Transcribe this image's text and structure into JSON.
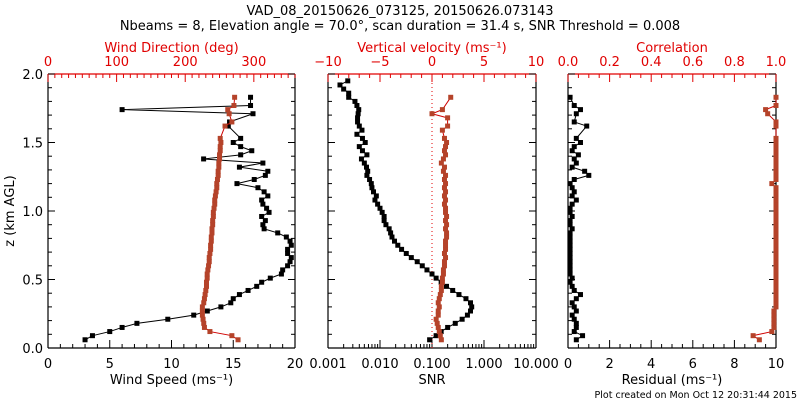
{
  "title_line1": "VAD_08_20150626_073125, 20150626.073143",
  "title_line2": "Nbeams = 8, Elevation angle = 70.0°, scan duration = 31.4 s, SNR Threshold = 0.008",
  "footer": "Plot created on Mon Oct 12 20:31:44 2015",
  "colors": {
    "black_series": "#000000",
    "red_series": "#b5432a",
    "axis_red": "#e00000",
    "zero_line": "#e00000"
  },
  "chart_data": [
    {
      "type": "line",
      "panel": "wind",
      "ylabel": "z (km AGL)",
      "ylim": [
        0,
        2
      ],
      "yticks": [
        "0.0",
        "0.5",
        "1.0",
        "1.5",
        "2.0"
      ],
      "bottom_axis": {
        "label": "Wind Speed (ms⁻¹)",
        "xlim": [
          0,
          20
        ],
        "ticks": [
          "0",
          "5",
          "10",
          "15",
          "20"
        ]
      },
      "top_axis": {
        "label": "Wind Direction (deg)",
        "xlim": [
          0,
          360
        ],
        "ticks": [
          "0",
          "100",
          "200",
          "300"
        ]
      },
      "series": [
        {
          "name": "Wind Speed",
          "axis": "bottom",
          "color": "black",
          "z": [
            0.06,
            0.09,
            0.12,
            0.15,
            0.18,
            0.21,
            0.24,
            0.27,
            0.3,
            0.33,
            0.36,
            0.39,
            0.42,
            0.45,
            0.48,
            0.51,
            0.54,
            0.57,
            0.6,
            0.63,
            0.66,
            0.69,
            0.72,
            0.75,
            0.78,
            0.81,
            0.84,
            0.87,
            0.9,
            0.93,
            0.96,
            0.99,
            1.02,
            1.05,
            1.08,
            1.11,
            1.14,
            1.17,
            1.2,
            1.23,
            1.26,
            1.29,
            1.32,
            1.35,
            1.38,
            1.41,
            1.44,
            1.47,
            1.5,
            1.53,
            1.62,
            1.65,
            1.71,
            1.74,
            1.77,
            1.83
          ],
          "values": [
            3.0,
            3.6,
            5.0,
            6.0,
            7.2,
            9.7,
            11.8,
            12.9,
            14.0,
            14.8,
            15.0,
            15.5,
            16.2,
            16.9,
            17.3,
            18.0,
            18.9,
            19.0,
            19.4,
            19.6,
            19.7,
            19.4,
            19.4,
            19.7,
            19.6,
            19.3,
            18.6,
            17.5,
            17.4,
            17.6,
            17.3,
            17.9,
            17.7,
            17.4,
            17.3,
            17.8,
            17.5,
            17.0,
            15.3,
            16.7,
            17.6,
            17.8,
            15.5,
            17.4,
            12.6,
            15.6,
            16.5,
            15.6,
            15.0,
            15.6,
            14.6,
            14.7,
            16.6,
            6.0,
            16.4,
            16.4
          ]
        },
        {
          "name": "Wind Direction",
          "axis": "top",
          "color": "red",
          "z": [
            0.06,
            0.09,
            0.12,
            0.15,
            0.18,
            0.21,
            0.24,
            0.27,
            0.3,
            0.33,
            0.36,
            0.39,
            0.42,
            0.45,
            0.48,
            0.51,
            0.54,
            0.57,
            0.6,
            0.63,
            0.66,
            0.69,
            0.72,
            0.75,
            0.78,
            0.81,
            0.84,
            0.87,
            0.9,
            0.93,
            0.96,
            0.99,
            1.02,
            1.05,
            1.08,
            1.11,
            1.14,
            1.17,
            1.2,
            1.23,
            1.26,
            1.29,
            1.32,
            1.35,
            1.38,
            1.41,
            1.44,
            1.47,
            1.5,
            1.53,
            1.62,
            1.65,
            1.71,
            1.74,
            1.77,
            1.83
          ],
          "values": [
            277,
            268,
            236,
            228,
            227,
            226,
            225,
            225,
            225,
            227,
            228,
            229,
            230,
            231,
            231,
            232,
            232,
            233,
            234,
            235,
            235,
            236,
            237,
            237,
            238,
            238,
            239,
            239,
            240,
            240,
            241,
            241,
            242,
            243,
            243,
            244,
            245,
            246,
            246,
            247,
            248,
            248,
            249,
            249,
            250,
            250,
            251,
            251,
            252,
            251,
            258,
            268,
            264,
            262,
            271,
            272
          ]
        }
      ]
    },
    {
      "type": "line",
      "panel": "snr",
      "ylim": [
        0,
        2
      ],
      "bottom_axis": {
        "label": "SNR",
        "scale": "log",
        "xlim": [
          0.001,
          10
        ],
        "ticks": [
          "0.001",
          "0.010",
          "0.100",
          "1.000",
          "10.000"
        ]
      },
      "top_axis": {
        "label": "Vertical velocity (ms⁻¹)",
        "xlim": [
          -10,
          10
        ],
        "ticks": [
          "−10",
          "−5",
          "0",
          "5",
          "10"
        ]
      },
      "series": [
        {
          "name": "SNR",
          "axis": "bottom",
          "color": "black",
          "z": [
            0.06,
            0.09,
            0.12,
            0.15,
            0.18,
            0.21,
            0.24,
            0.27,
            0.3,
            0.33,
            0.36,
            0.39,
            0.42,
            0.45,
            0.48,
            0.51,
            0.54,
            0.57,
            0.6,
            0.63,
            0.66,
            0.69,
            0.72,
            0.75,
            0.78,
            0.81,
            0.84,
            0.87,
            0.9,
            0.93,
            0.96,
            0.99,
            1.02,
            1.05,
            1.08,
            1.11,
            1.14,
            1.17,
            1.2,
            1.23,
            1.26,
            1.29,
            1.32,
            1.35,
            1.38,
            1.41,
            1.44,
            1.47,
            1.5,
            1.53,
            1.56,
            1.59,
            1.62,
            1.65,
            1.68,
            1.71,
            1.74,
            1.77,
            1.8,
            1.83,
            1.86,
            1.89,
            1.92,
            1.95
          ],
          "values": [
            0.09,
            0.12,
            0.15,
            0.2,
            0.28,
            0.38,
            0.48,
            0.55,
            0.58,
            0.55,
            0.45,
            0.33,
            0.25,
            0.19,
            0.15,
            0.12,
            0.1,
            0.08,
            0.065,
            0.052,
            0.04,
            0.032,
            0.026,
            0.022,
            0.019,
            0.017,
            0.016,
            0.015,
            0.013,
            0.012,
            0.012,
            0.011,
            0.01,
            0.009,
            0.008,
            0.0085,
            0.0075,
            0.007,
            0.0068,
            0.0063,
            0.0056,
            0.0058,
            0.0055,
            0.005,
            0.0044,
            0.0056,
            0.0046,
            0.004,
            0.0052,
            0.0046,
            0.0036,
            0.0045,
            0.004,
            0.0037,
            0.0037,
            0.0038,
            0.0039,
            0.0036,
            0.0033,
            0.0025,
            0.0025,
            0.002,
            0.0017,
            0.0024
          ]
        },
        {
          "name": "Vertical velocity",
          "axis": "top",
          "color": "red",
          "z": [
            0.06,
            0.09,
            0.12,
            0.15,
            0.18,
            0.21,
            0.24,
            0.27,
            0.3,
            0.33,
            0.36,
            0.39,
            0.42,
            0.45,
            0.48,
            0.51,
            0.54,
            0.57,
            0.6,
            0.63,
            0.66,
            0.69,
            0.72,
            0.75,
            0.78,
            0.81,
            0.84,
            0.87,
            0.9,
            0.93,
            0.96,
            0.99,
            1.02,
            1.05,
            1.08,
            1.11,
            1.14,
            1.17,
            1.2,
            1.23,
            1.26,
            1.29,
            1.32,
            1.35,
            1.38,
            1.41,
            1.44,
            1.47,
            1.5,
            1.53,
            1.59,
            1.62,
            1.68,
            1.71,
            1.74,
            1.83
          ],
          "values": [
            0.9,
            0.8,
            0.7,
            0.6,
            0.5,
            0.4,
            0.6,
            0.6,
            0.7,
            0.6,
            0.7,
            0.8,
            0.9,
            0.9,
            1.0,
            1.0,
            1.1,
            1.1,
            1.2,
            1.2,
            1.3,
            1.2,
            1.3,
            1.3,
            1.3,
            1.4,
            1.4,
            1.3,
            1.4,
            1.3,
            1.4,
            1.3,
            1.3,
            1.2,
            1.3,
            1.2,
            1.3,
            1.2,
            1.3,
            1.2,
            1.3,
            1.1,
            1.2,
            0.9,
            1.1,
            1.3,
            1.2,
            1.3,
            1.4,
            1.2,
            1.0,
            1.5,
            1.5,
            0.0,
            1.0,
            1.8
          ]
        }
      ],
      "reference_line": {
        "top_axis_value": 0,
        "style": "dotted"
      }
    },
    {
      "type": "line",
      "panel": "residual",
      "ylim": [
        0,
        2
      ],
      "bottom_axis": {
        "label": "Residual (ms⁻¹)",
        "xlim": [
          0,
          10
        ],
        "ticks": [
          "0",
          "2",
          "4",
          "6",
          "8",
          "10"
        ]
      },
      "top_axis": {
        "label": "Correlation",
        "xlim": [
          0,
          1
        ],
        "ticks": [
          "0.0",
          "0.2",
          "0.4",
          "0.6",
          "0.8",
          "1.0"
        ]
      },
      "series": [
        {
          "name": "Residual",
          "axis": "bottom",
          "color": "black",
          "z": [
            0.06,
            0.09,
            0.12,
            0.15,
            0.18,
            0.21,
            0.24,
            0.27,
            0.3,
            0.33,
            0.36,
            0.39,
            0.42,
            0.45,
            0.48,
            0.51,
            0.54,
            0.57,
            0.6,
            0.63,
            0.66,
            0.69,
            0.72,
            0.75,
            0.78,
            0.81,
            0.84,
            0.87,
            0.9,
            0.93,
            0.96,
            0.99,
            1.02,
            1.05,
            1.08,
            1.11,
            1.14,
            1.17,
            1.2,
            1.23,
            1.26,
            1.29,
            1.32,
            1.35,
            1.38,
            1.41,
            1.44,
            1.47,
            1.5,
            1.53,
            1.62,
            1.65,
            1.71,
            1.74,
            1.77,
            1.83
          ],
          "values": [
            0.4,
            0.7,
            0.3,
            0.4,
            0.4,
            0.3,
            0.2,
            0.4,
            0.3,
            0.2,
            0.4,
            0.6,
            0.3,
            0.2,
            0.1,
            0.2,
            0.1,
            0.1,
            0.1,
            0.1,
            0.1,
            0.1,
            0.1,
            0.1,
            0.1,
            0.1,
            0.1,
            0.2,
            0.1,
            0.1,
            0.2,
            0.1,
            0.1,
            0.2,
            0.4,
            0.2,
            0.3,
            0.2,
            0.1,
            0.3,
            1.0,
            0.8,
            0.2,
            0.4,
            0.3,
            0.5,
            0.2,
            0.3,
            0.6,
            0.4,
            0.9,
            0.3,
            0.4,
            0.6,
            0.3,
            0.1
          ]
        },
        {
          "name": "Correlation",
          "axis": "top",
          "color": "red",
          "z": [
            0.06,
            0.09,
            0.12,
            0.15,
            0.18,
            0.21,
            0.24,
            0.27,
            0.3,
            0.33,
            0.36,
            0.39,
            0.42,
            0.45,
            0.48,
            0.51,
            0.54,
            0.57,
            0.6,
            0.63,
            0.66,
            0.69,
            0.72,
            0.75,
            0.78,
            0.81,
            0.84,
            0.87,
            0.9,
            0.93,
            0.96,
            0.99,
            1.02,
            1.05,
            1.08,
            1.11,
            1.14,
            1.17,
            1.2,
            1.23,
            1.26,
            1.29,
            1.32,
            1.35,
            1.38,
            1.41,
            1.44,
            1.47,
            1.5,
            1.53,
            1.62,
            1.65,
            1.71,
            1.74,
            1.77,
            1.83
          ],
          "values": [
            0.92,
            0.89,
            0.98,
            0.99,
            0.99,
            0.99,
            0.99,
            0.99,
            1.0,
            1.0,
            1.0,
            1.0,
            1.0,
            1.0,
            1.0,
            1.0,
            1.0,
            1.0,
            1.0,
            1.0,
            1.0,
            1.0,
            1.0,
            1.0,
            1.0,
            1.0,
            1.0,
            1.0,
            1.0,
            1.0,
            1.0,
            1.0,
            1.0,
            1.0,
            1.0,
            1.0,
            1.0,
            1.0,
            0.98,
            1.0,
            1.0,
            1.0,
            1.0,
            1.0,
            1.0,
            1.0,
            1.0,
            1.0,
            1.0,
            1.0,
            1.0,
            1.0,
            0.96,
            0.95,
            1.0,
            1.0
          ]
        }
      ]
    }
  ]
}
